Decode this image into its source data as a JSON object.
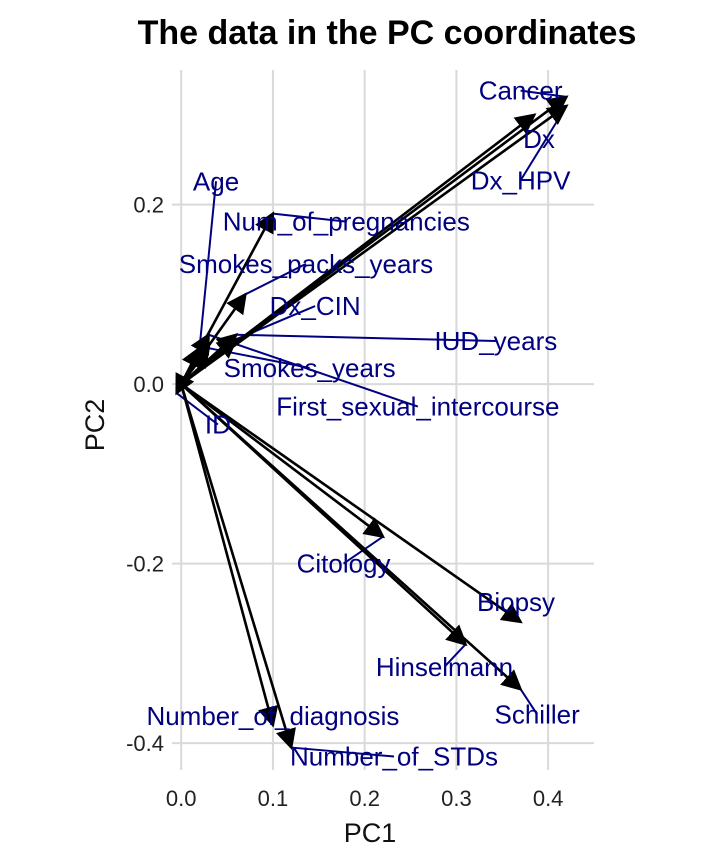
{
  "chart_data": {
    "type": "scatter",
    "subtype": "biplot-arrows",
    "title": "The data in the PC coordinates",
    "xlabel": "PC1",
    "ylabel": "PC2",
    "xlim": [
      -0.01,
      0.45
    ],
    "ylim": [
      -0.43,
      0.35
    ],
    "xticks": [
      0.0,
      0.1,
      0.2,
      0.3,
      0.4
    ],
    "xtick_labels": [
      "0.0",
      "0.1",
      "0.2",
      "0.3",
      "0.4"
    ],
    "yticks": [
      -0.4,
      -0.2,
      0.0,
      0.2
    ],
    "ytick_labels": [
      "-0.4",
      "-0.2",
      "0.0",
      "0.2"
    ],
    "grid": true,
    "arrow_color": "#000000",
    "label_color": "#000080",
    "vectors": [
      {
        "label": "Cancer",
        "x": 0.42,
        "y": 0.32,
        "label_x": 0.37,
        "label_y": 0.327
      },
      {
        "label": "Dx",
        "x": 0.385,
        "y": 0.3,
        "label_x": 0.39,
        "label_y": 0.273
      },
      {
        "label": "Dx_HPV",
        "x": 0.42,
        "y": 0.31,
        "label_x": 0.37,
        "label_y": 0.227
      },
      {
        "label": "Age",
        "x": 0.02,
        "y": 0.04,
        "label_x": 0.038,
        "label_y": 0.226
      },
      {
        "label": "Num_of_pregnancies",
        "x": 0.1,
        "y": 0.19,
        "label_x": 0.18,
        "label_y": 0.181
      },
      {
        "label": "Smokes_packs_years",
        "x": 0.07,
        "y": 0.1,
        "label_x": 0.136,
        "label_y": 0.134
      },
      {
        "label": "Dx_CIN",
        "x": 0.06,
        "y": 0.05,
        "label_x": 0.146,
        "label_y": 0.087
      },
      {
        "label": "IUD_years",
        "x": 0.06,
        "y": 0.055,
        "label_x": 0.343,
        "label_y": 0.048
      },
      {
        "label": "Smokes_years",
        "x": 0.03,
        "y": 0.04,
        "label_x": 0.14,
        "label_y": 0.018
      },
      {
        "label": "First_sexual_intercourse",
        "x": 0.03,
        "y": 0.055,
        "label_x": 0.258,
        "label_y": -0.025
      },
      {
        "label": "ID",
        "x": -0.005,
        "y": -0.01,
        "label_x": 0.04,
        "label_y": -0.045
      },
      {
        "label": "Citology",
        "x": 0.22,
        "y": -0.17,
        "label_x": 0.177,
        "label_y": -0.2
      },
      {
        "label": "Biopsy",
        "x": 0.37,
        "y": -0.265,
        "label_x": 0.365,
        "label_y": -0.243
      },
      {
        "label": "Hinselmann",
        "x": 0.31,
        "y": -0.29,
        "label_x": 0.287,
        "label_y": -0.315
      },
      {
        "label": "Schiller",
        "x": 0.37,
        "y": -0.34,
        "label_x": 0.388,
        "label_y": -0.368
      },
      {
        "label": "Number_of_diagnosis",
        "x": 0.1,
        "y": -0.38,
        "label_x": 0.1,
        "label_y": -0.37
      },
      {
        "label": "Number_of_STDs",
        "x": 0.12,
        "y": -0.405,
        "label_x": 0.232,
        "label_y": -0.415
      }
    ]
  }
}
